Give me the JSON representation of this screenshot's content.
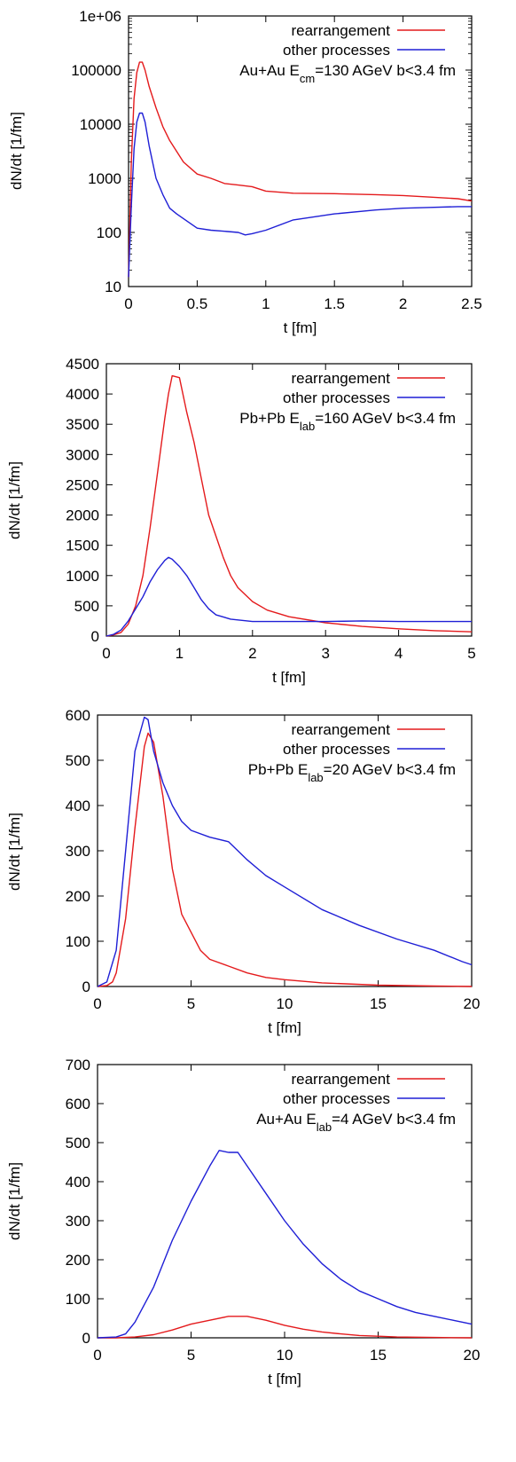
{
  "chart_data": [
    {
      "type": "line",
      "yscale": "log",
      "xlabel": "t [fm]",
      "ylabel": "dN/dt [1/fm]",
      "xlim": [
        0,
        2.5
      ],
      "ylim": [
        10,
        1000000
      ],
      "xticks": [
        0,
        0.5,
        1,
        1.5,
        2,
        2.5
      ],
      "xtick_labels": [
        "0",
        "0.5",
        "1",
        "1.5",
        "2",
        "2.5"
      ],
      "yticks": [
        10,
        100,
        1000,
        10000,
        100000,
        1000000
      ],
      "ytick_labels": [
        "10",
        "100",
        "1000",
        "10000",
        "100000",
        "1e+06"
      ],
      "annotation": {
        "main": "Au+Au E",
        "sub": "cm",
        "rest": "=130 AGeV b<3.4 fm"
      },
      "legend_position": "top-right",
      "series": [
        {
          "name": "rearrangement",
          "color": "#e41a1c",
          "x": [
            0,
            0.02,
            0.04,
            0.06,
            0.08,
            0.1,
            0.12,
            0.15,
            0.2,
            0.25,
            0.3,
            0.4,
            0.5,
            0.6,
            0.7,
            0.8,
            0.9,
            1.0,
            1.2,
            1.5,
            1.8,
            2.0,
            2.2,
            2.4,
            2.5
          ],
          "y": [
            15,
            2000,
            30000,
            90000,
            140000,
            140000,
            100000,
            50000,
            20000,
            9000,
            5000,
            2000,
            1200,
            1000,
            800,
            750,
            700,
            580,
            530,
            520,
            500,
            480,
            450,
            420,
            380
          ]
        },
        {
          "name": "other processes",
          "color": "#1f1fd6",
          "x": [
            0,
            0.02,
            0.04,
            0.06,
            0.08,
            0.1,
            0.12,
            0.15,
            0.2,
            0.25,
            0.3,
            0.35,
            0.4,
            0.5,
            0.6,
            0.7,
            0.8,
            0.85,
            0.9,
            1.0,
            1.2,
            1.5,
            1.8,
            2.0,
            2.2,
            2.4,
            2.5
          ],
          "y": [
            15,
            300,
            3500,
            11000,
            16000,
            16000,
            11000,
            4000,
            1000,
            500,
            280,
            220,
            180,
            120,
            110,
            105,
            100,
            90,
            95,
            110,
            170,
            220,
            260,
            280,
            290,
            300,
            300
          ]
        }
      ]
    },
    {
      "type": "line",
      "yscale": "linear",
      "xlabel": "t [fm]",
      "ylabel": "dN/dt [1/fm]",
      "xlim": [
        0,
        5
      ],
      "ylim": [
        0,
        4500
      ],
      "xticks": [
        0,
        1,
        2,
        3,
        4,
        5
      ],
      "xtick_labels": [
        "0",
        "1",
        "2",
        "3",
        "4",
        "5"
      ],
      "yticks": [
        0,
        500,
        1000,
        1500,
        2000,
        2500,
        3000,
        3500,
        4000,
        4500
      ],
      "ytick_labels": [
        "0",
        "500",
        "1000",
        "1500",
        "2000",
        "2500",
        "3000",
        "3500",
        "4000",
        "4500"
      ],
      "annotation": {
        "main": "Pb+Pb E",
        "sub": "lab",
        "rest": "=160 AGeV b<3.4 fm"
      },
      "legend_position": "top-right",
      "series": [
        {
          "name": "rearrangement",
          "color": "#e41a1c",
          "x": [
            0,
            0.1,
            0.2,
            0.3,
            0.4,
            0.5,
            0.6,
            0.7,
            0.8,
            0.85,
            0.9,
            1.0,
            1.1,
            1.2,
            1.3,
            1.4,
            1.5,
            1.6,
            1.7,
            1.8,
            2.0,
            2.2,
            2.5,
            3.0,
            3.5,
            4.0,
            4.5,
            5.0
          ],
          "y": [
            0,
            20,
            60,
            200,
            500,
            1000,
            1800,
            2700,
            3600,
            4000,
            4300,
            4270,
            3700,
            3200,
            2600,
            2000,
            1650,
            1300,
            1000,
            800,
            570,
            430,
            320,
            220,
            160,
            120,
            90,
            70
          ]
        },
        {
          "name": "other processes",
          "color": "#1f1fd6",
          "x": [
            0,
            0.1,
            0.2,
            0.3,
            0.4,
            0.5,
            0.6,
            0.7,
            0.8,
            0.85,
            0.9,
            1.0,
            1.1,
            1.2,
            1.3,
            1.4,
            1.5,
            1.7,
            2.0,
            2.5,
            3.0,
            3.5,
            4.0,
            4.5,
            5.0
          ],
          "y": [
            0,
            30,
            100,
            250,
            450,
            650,
            900,
            1100,
            1250,
            1300,
            1270,
            1150,
            1000,
            800,
            600,
            450,
            350,
            280,
            240,
            240,
            240,
            250,
            240,
            240,
            240
          ]
        }
      ]
    },
    {
      "type": "line",
      "yscale": "linear",
      "xlabel": "t [fm]",
      "ylabel": "dN/dt [1/fm]",
      "xlim": [
        0,
        20
      ],
      "ylim": [
        0,
        600
      ],
      "xticks": [
        0,
        5,
        10,
        15,
        20
      ],
      "xtick_labels": [
        "0",
        "5",
        "10",
        "15",
        "20"
      ],
      "yticks": [
        0,
        100,
        200,
        300,
        400,
        500,
        600
      ],
      "ytick_labels": [
        "0",
        "100",
        "200",
        "300",
        "400",
        "500",
        "600"
      ],
      "annotation": {
        "main": "Pb+Pb E",
        "sub": "lab",
        "rest": "=20 AGeV b<3.4 fm"
      },
      "legend_position": "top-right",
      "series": [
        {
          "name": "rearrangement",
          "color": "#e41a1c",
          "x": [
            0,
            0.5,
            0.8,
            1.0,
            1.5,
            2.0,
            2.5,
            2.7,
            3.0,
            3.5,
            4.0,
            4.5,
            5.0,
            5.5,
            6.0,
            7.0,
            8.0,
            9.0,
            10.0,
            12.0,
            15.0,
            18.0,
            20.0
          ],
          "y": [
            0,
            2,
            10,
            30,
            150,
            350,
            530,
            560,
            540,
            420,
            260,
            160,
            120,
            80,
            60,
            45,
            30,
            20,
            15,
            8,
            3,
            1,
            0
          ]
        },
        {
          "name": "other processes",
          "color": "#1f1fd6",
          "x": [
            0,
            0.5,
            1.0,
            1.5,
            2.0,
            2.5,
            2.7,
            3.0,
            3.5,
            4.0,
            4.5,
            5.0,
            6.0,
            7.0,
            7.5,
            8.0,
            9.0,
            10.0,
            12.0,
            14.0,
            16.0,
            18.0,
            19.5,
            20.0
          ],
          "y": [
            0,
            10,
            80,
            300,
            520,
            595,
            590,
            520,
            450,
            400,
            365,
            345,
            330,
            320,
            300,
            280,
            245,
            220,
            170,
            135,
            105,
            80,
            55,
            48
          ]
        }
      ]
    },
    {
      "type": "line",
      "yscale": "linear",
      "xlabel": "t [fm]",
      "ylabel": "dN/dt [1/fm]",
      "xlim": [
        0,
        20
      ],
      "ylim": [
        0,
        700
      ],
      "xticks": [
        0,
        5,
        10,
        15,
        20
      ],
      "xtick_labels": [
        "0",
        "5",
        "10",
        "15",
        "20"
      ],
      "yticks": [
        0,
        100,
        200,
        300,
        400,
        500,
        600,
        700
      ],
      "ytick_labels": [
        "0",
        "100",
        "200",
        "300",
        "400",
        "500",
        "600",
        "700"
      ],
      "annotation": {
        "main": "Au+Au E",
        "sub": "lab",
        "rest": "=4 AGeV b<3.4 fm"
      },
      "legend_position": "top-right",
      "series": [
        {
          "name": "rearrangement",
          "color": "#e41a1c",
          "x": [
            0,
            1,
            2,
            3,
            4,
            5,
            6,
            7,
            8,
            9,
            10,
            11,
            12,
            13,
            14,
            15,
            16,
            18,
            20
          ],
          "y": [
            0,
            0,
            2,
            8,
            20,
            35,
            45,
            55,
            55,
            45,
            32,
            22,
            15,
            10,
            6,
            4,
            2,
            1,
            0
          ]
        },
        {
          "name": "other processes",
          "color": "#1f1fd6",
          "x": [
            0,
            1,
            1.5,
            2,
            3,
            4,
            5,
            6,
            6.5,
            7,
            7.5,
            8,
            9,
            10,
            11,
            12,
            13,
            14,
            15,
            16,
            17,
            18,
            19,
            20
          ],
          "y": [
            0,
            2,
            10,
            40,
            130,
            250,
            350,
            440,
            480,
            475,
            475,
            440,
            370,
            300,
            240,
            190,
            150,
            120,
            100,
            80,
            65,
            55,
            45,
            35
          ]
        }
      ]
    }
  ]
}
